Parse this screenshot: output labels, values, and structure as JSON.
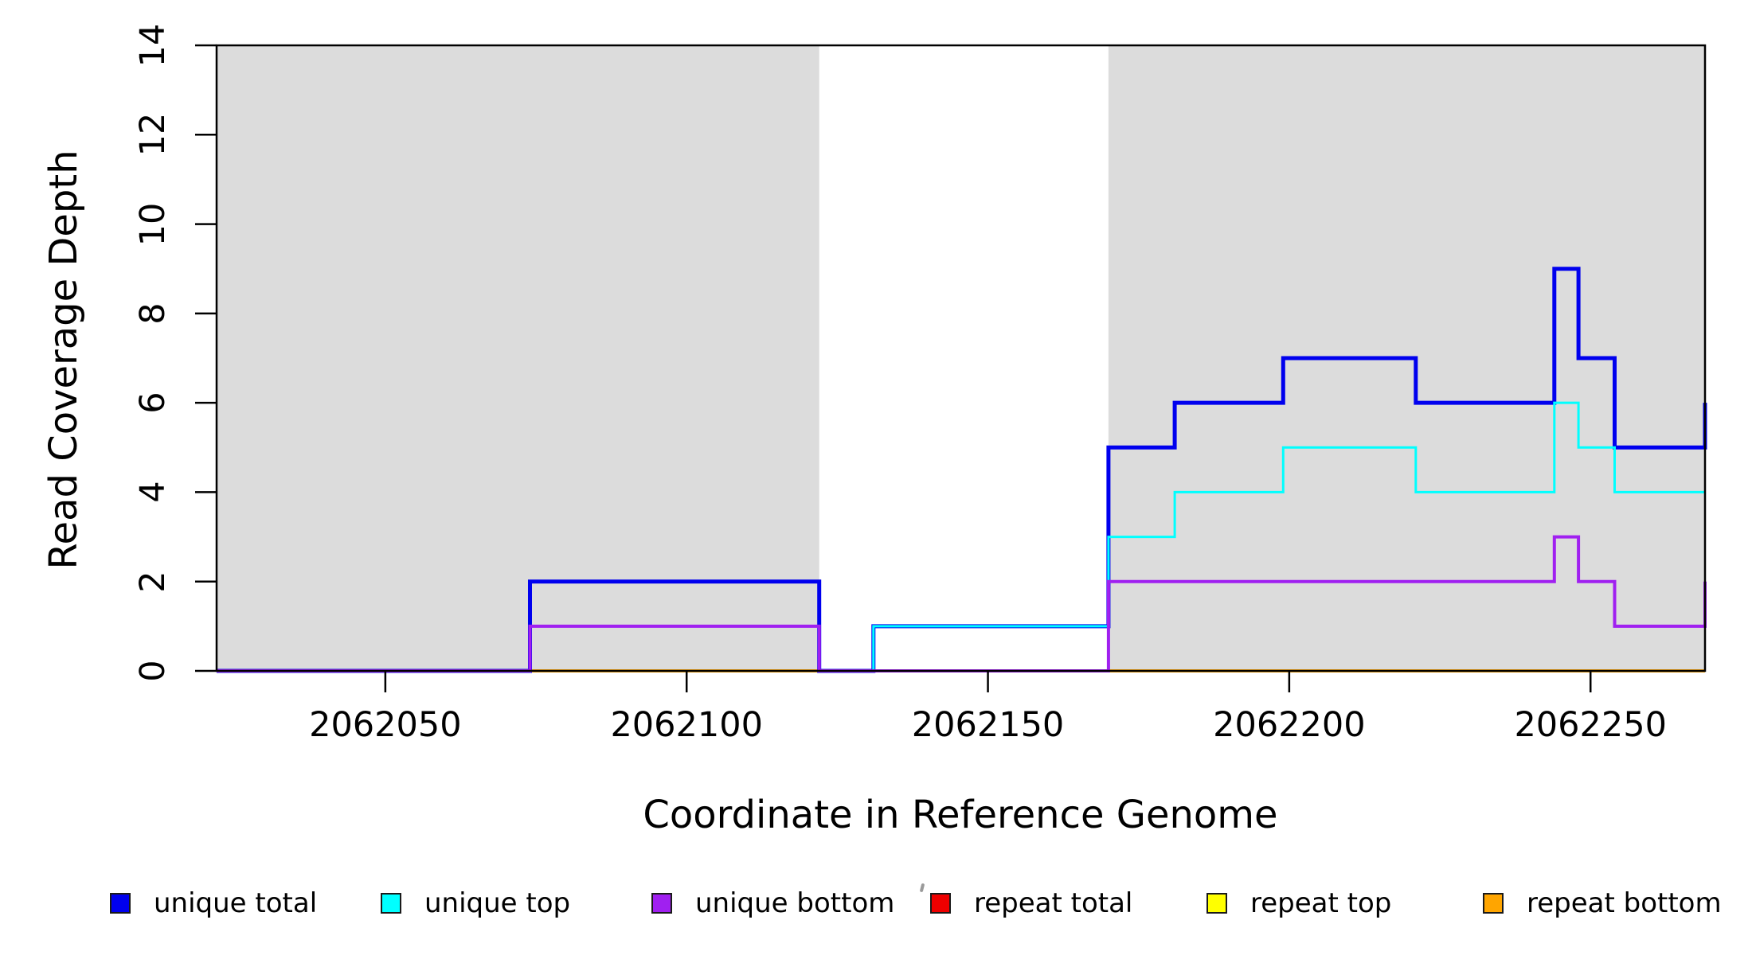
{
  "figure": {
    "background": "#FFFFFF",
    "frame_color": "#000000"
  },
  "chart_data": {
    "type": "line",
    "subtype": "step-coverage",
    "title": "",
    "xlabel": "Coordinate in Reference Genome",
    "ylabel": "Read Coverage Depth",
    "xlim": [
      2062022,
      2062269
    ],
    "ylim": [
      0,
      14
    ],
    "grid": "off",
    "x_ticks": [
      2062050,
      2062100,
      2062150,
      2062200,
      2062250
    ],
    "x_tick_labels": [
      "2062050",
      "2062100",
      "2062150",
      "2062200",
      "2062250"
    ],
    "y_ticks": [
      0,
      2,
      4,
      6,
      8,
      10,
      12,
      14
    ],
    "y_tick_labels": [
      "0",
      "2",
      "4",
      "6",
      "8",
      "10",
      "12",
      "14"
    ],
    "shade_color": "#DCDCDC",
    "shaded_regions": [
      {
        "from": 2062022,
        "to": 2062122
      },
      {
        "from": 2062170,
        "to": 2062269
      }
    ],
    "x_end": 2062269,
    "series": [
      {
        "name": "repeat total",
        "color": "#EE0000",
        "width": 3,
        "steps": [
          [
            2062022,
            0
          ]
        ]
      },
      {
        "name": "repeat top",
        "color": "#FFFF00",
        "width": 3,
        "steps": [
          [
            2062022,
            0
          ]
        ]
      },
      {
        "name": "repeat bottom",
        "color": "#FFA500",
        "width": 4,
        "steps": [
          [
            2062022,
            0
          ]
        ]
      },
      {
        "name": "unique total",
        "color": "#0000EE",
        "width": 5,
        "steps": [
          [
            2062022,
            0
          ],
          [
            2062074,
            2
          ],
          [
            2062122,
            0
          ],
          [
            2062131,
            1
          ],
          [
            2062170,
            5
          ],
          [
            2062181,
            6
          ],
          [
            2062199,
            7
          ],
          [
            2062221,
            6
          ],
          [
            2062244,
            9
          ],
          [
            2062248,
            7
          ],
          [
            2062254,
            5
          ],
          [
            2062269,
            6
          ]
        ]
      },
      {
        "name": "unique top",
        "color": "#00FFFF",
        "width": 3,
        "steps": [
          [
            2062022,
            0
          ],
          [
            2062074,
            1
          ],
          [
            2062122,
            0
          ],
          [
            2062131,
            1
          ],
          [
            2062170,
            3
          ],
          [
            2062181,
            4
          ],
          [
            2062199,
            5
          ],
          [
            2062221,
            4
          ],
          [
            2062244,
            6
          ],
          [
            2062248,
            5
          ],
          [
            2062254,
            4
          ]
        ]
      },
      {
        "name": "unique bottom",
        "color": "#A020F0",
        "width": 4,
        "steps": [
          [
            2062022,
            0
          ],
          [
            2062074,
            1
          ],
          [
            2062122,
            0
          ],
          [
            2062170,
            2
          ],
          [
            2062244,
            3
          ],
          [
            2062248,
            2
          ],
          [
            2062254,
            1
          ],
          [
            2062269,
            2
          ]
        ]
      }
    ],
    "legend_position": "bottom-horizontal",
    "legend": [
      {
        "label": "unique total",
        "color": "#0000EE"
      },
      {
        "label": "unique top",
        "color": "#00FFFF"
      },
      {
        "label": "unique bottom",
        "color": "#A020F0"
      },
      {
        "label": "repeat total",
        "color": "#EE0000"
      },
      {
        "label": "repeat top",
        "color": "#FFFF00"
      },
      {
        "label": "repeat bottom",
        "color": "#FFA500"
      }
    ]
  }
}
